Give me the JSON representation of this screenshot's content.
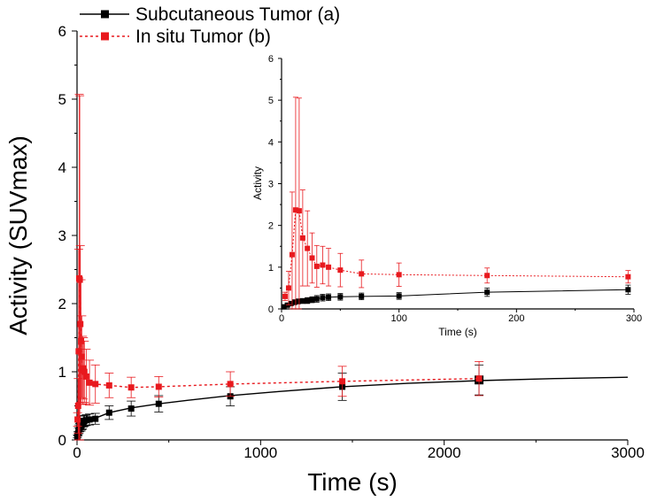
{
  "chart_data": [
    {
      "id": "main",
      "type": "scatter",
      "title": "",
      "xlabel": "Time (s)",
      "ylabel": "Activity (SUVmax)",
      "xlim": [
        0,
        3000
      ],
      "ylim": [
        0,
        6
      ],
      "xticks": [
        0,
        1000,
        2000,
        3000
      ],
      "yticks": [
        0,
        1,
        2,
        3,
        4,
        5,
        6
      ],
      "xtick_labels": [
        "0",
        "1000",
        "2000",
        "3000"
      ],
      "ytick_labels": [
        "0",
        "1",
        "2",
        "3",
        "4",
        "5",
        "6"
      ],
      "grid": false,
      "legend_position": "top-left",
      "series": [
        {
          "name": "Subcutaneous Tumor (a)",
          "color": "#000000",
          "line_style": "solid",
          "marker": "square",
          "x": [
            2,
            5,
            8,
            11,
            14,
            18,
            22,
            26,
            30,
            35,
            40,
            50,
            68,
            100,
            175,
            295,
            445,
            835,
            1445,
            2190
          ],
          "y": [
            0.05,
            0.09,
            0.13,
            0.16,
            0.18,
            0.19,
            0.2,
            0.22,
            0.24,
            0.27,
            0.28,
            0.29,
            0.3,
            0.31,
            0.4,
            0.46,
            0.53,
            0.64,
            0.78,
            0.88
          ],
          "err": [
            0.02,
            0.03,
            0.05,
            0.06,
            0.06,
            0.06,
            0.07,
            0.07,
            0.08,
            0.08,
            0.08,
            0.08,
            0.08,
            0.08,
            0.1,
            0.11,
            0.12,
            0.14,
            0.2,
            0.22
          ],
          "fit": {
            "x": [
              0,
              5,
              10,
              20,
              40,
              70,
              100,
              175,
              295,
              445,
              600,
              835,
              1100,
              1445,
              1800,
              2190,
              2600,
              3000
            ],
            "y": [
              0.0,
              0.08,
              0.14,
              0.2,
              0.26,
              0.3,
              0.32,
              0.4,
              0.47,
              0.53,
              0.58,
              0.65,
              0.71,
              0.78,
              0.83,
              0.87,
              0.9,
              0.92
            ]
          }
        },
        {
          "name": "In situ Tumor (b)",
          "color": "#e8191e",
          "line_style": "dotted",
          "marker": "square",
          "x": [
            3,
            6,
            9,
            12,
            15,
            18,
            22,
            26,
            30,
            35,
            40,
            50,
            68,
            100,
            175,
            295,
            445,
            835,
            1445,
            2190
          ],
          "y": [
            0.3,
            0.5,
            1.3,
            2.37,
            2.35,
            1.7,
            1.45,
            1.22,
            1.02,
            1.05,
            1.0,
            0.93,
            0.84,
            0.82,
            0.8,
            0.77,
            0.78,
            0.82,
            0.86,
            0.9
          ],
          "err": [
            0.1,
            0.4,
            1.5,
            2.7,
            2.7,
            1.15,
            0.9,
            0.6,
            0.5,
            0.45,
            0.45,
            0.4,
            0.33,
            0.28,
            0.18,
            0.15,
            0.15,
            0.18,
            0.22,
            0.25
          ]
        }
      ]
    },
    {
      "id": "inset",
      "type": "scatter",
      "title": "",
      "xlabel": "Time (s)",
      "ylabel": "Activity",
      "xlim": [
        0,
        300
      ],
      "ylim": [
        0,
        6
      ],
      "xticks": [
        0,
        100,
        200,
        300
      ],
      "yticks": [
        0,
        1,
        2,
        3,
        4,
        5,
        6
      ],
      "xtick_labels": [
        "0",
        "100",
        "200",
        "300"
      ],
      "ytick_labels": [
        "0",
        "1",
        "2",
        "3",
        "4",
        "5",
        "6"
      ],
      "grid": false,
      "series": [
        {
          "name": "Subcutaneous Tumor (a)",
          "color": "#000000",
          "line_style": "solid",
          "marker": "square",
          "x": [
            2,
            5,
            8,
            11,
            14,
            18,
            22,
            26,
            30,
            35,
            40,
            50,
            68,
            100,
            175,
            295
          ],
          "y": [
            0.05,
            0.09,
            0.13,
            0.16,
            0.18,
            0.19,
            0.2,
            0.22,
            0.24,
            0.27,
            0.28,
            0.29,
            0.3,
            0.31,
            0.4,
            0.46
          ],
          "err": [
            0.02,
            0.03,
            0.05,
            0.06,
            0.06,
            0.06,
            0.07,
            0.07,
            0.08,
            0.08,
            0.08,
            0.08,
            0.08,
            0.08,
            0.1,
            0.11
          ]
        },
        {
          "name": "In situ Tumor (b)",
          "color": "#e8191e",
          "line_style": "dotted",
          "marker": "square",
          "x": [
            3,
            6,
            9,
            12,
            15,
            18,
            22,
            26,
            30,
            35,
            40,
            50,
            68,
            100,
            175,
            295
          ],
          "y": [
            0.3,
            0.5,
            1.3,
            2.37,
            2.35,
            1.7,
            1.45,
            1.22,
            1.02,
            1.05,
            1.0,
            0.93,
            0.84,
            0.82,
            0.8,
            0.77
          ],
          "err": [
            0.1,
            0.4,
            1.5,
            2.7,
            2.7,
            1.15,
            0.9,
            0.6,
            0.5,
            0.45,
            0.45,
            0.4,
            0.33,
            0.28,
            0.18,
            0.15
          ]
        }
      ]
    }
  ]
}
